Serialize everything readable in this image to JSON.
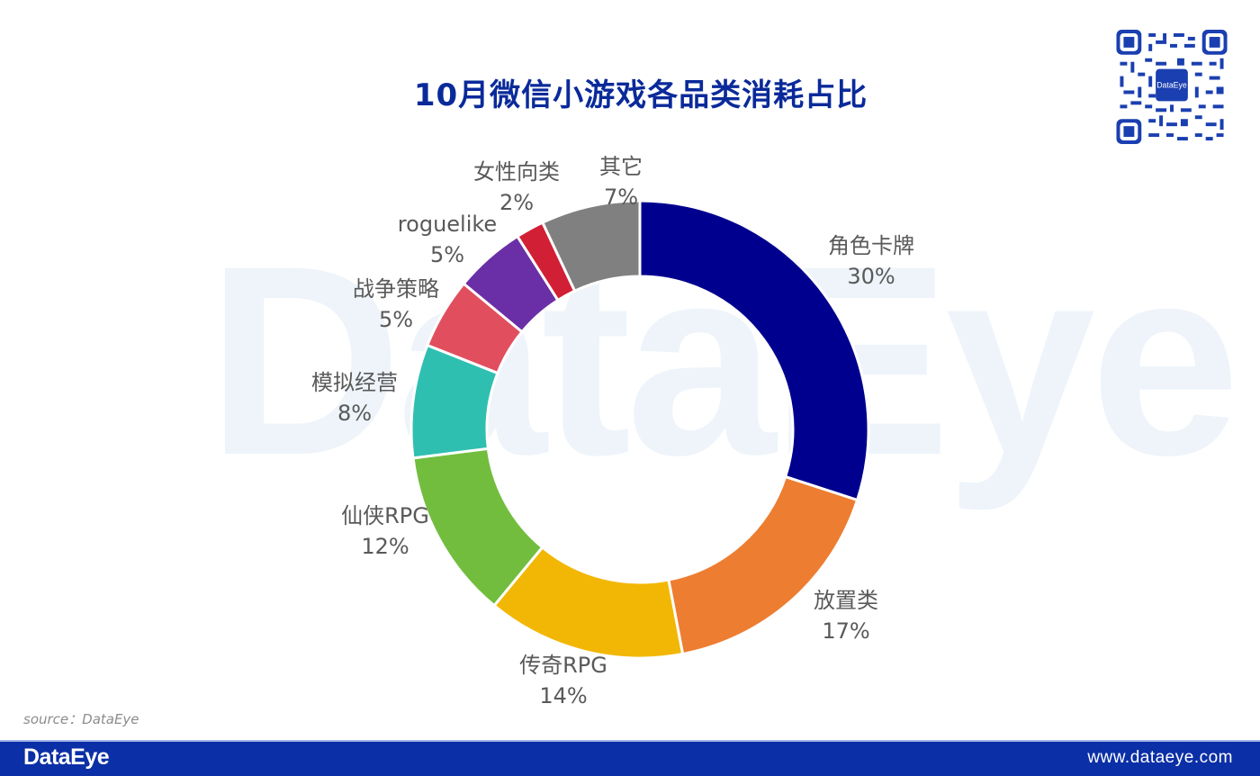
{
  "title": "10月微信小游戏各品类消耗占比",
  "watermark": "DataEye",
  "source": "source：DataEye",
  "footer": {
    "brand": "DataEye",
    "url": "www.dataeye.com"
  },
  "qr": {
    "center_label": "DataEye"
  },
  "colors": {
    "title": "#0a2a9a",
    "footer_bg": "#0b2fa6",
    "label_text": "#595959"
  },
  "chart_data": {
    "type": "pie",
    "subtype": "donut",
    "title": "10月微信小游戏各品类消耗占比",
    "start_angle": "12 o'clock, clockwise",
    "legend": "none (data labels outside slices)",
    "categories": [
      "角色卡牌",
      "放置类",
      "传奇RPG",
      "仙侠RPG",
      "模拟经营",
      "战争策略",
      "roguelike",
      "女性向类",
      "其它"
    ],
    "values": [
      30,
      17,
      14,
      12,
      8,
      5,
      5,
      2,
      7
    ],
    "labels": [
      "30%",
      "17%",
      "14%",
      "12%",
      "8%",
      "5%",
      "5%",
      "2%",
      "7%"
    ],
    "colors": [
      "#00008f",
      "#ed7d31",
      "#f2b705",
      "#72bd3e",
      "#2fbfb0",
      "#e14f5f",
      "#6a2fa6",
      "#d11f35",
      "#808080"
    ],
    "unit": "%"
  }
}
